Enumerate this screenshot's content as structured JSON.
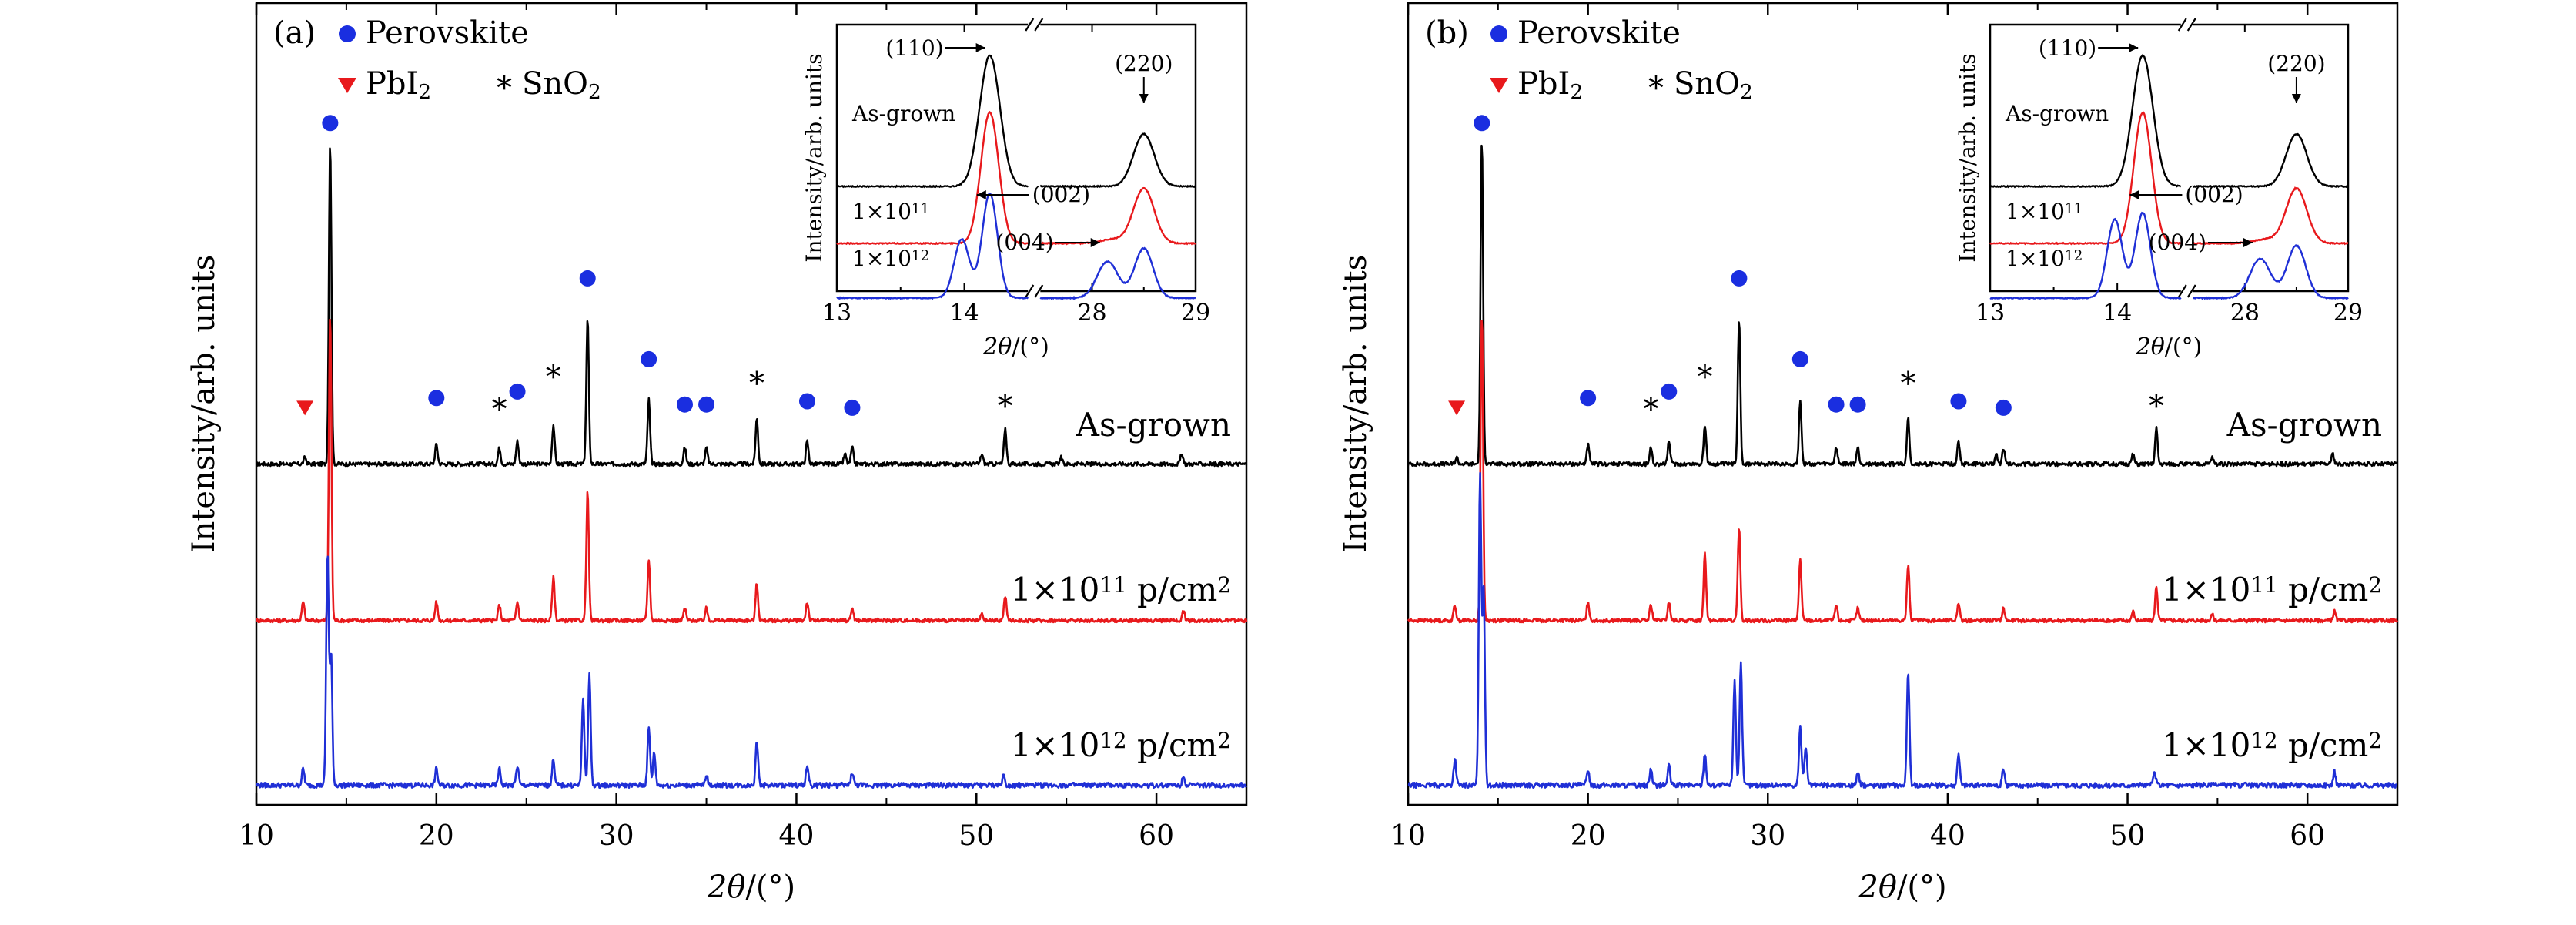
{
  "colors": {
    "as_grown": "#000000",
    "dose_1e11": "#e8191c",
    "dose_1e12": "#1f2fd6",
    "perovskite": "#1a2ee0",
    "pbi2": "#e8191c",
    "frame": "#000000"
  },
  "chart_data": [
    {
      "type": "line",
      "panel_label": "(a)",
      "xlabel_parts": {
        "sym": "2θ",
        "unit": "/(°)"
      },
      "ylabel": "Intensity/arb. units",
      "xlim": [
        10,
        65
      ],
      "xticks": [
        "10",
        "20",
        "30",
        "40",
        "50",
        "60"
      ],
      "legend": {
        "perovskite": "Perovskite",
        "pbi2_parts": [
          "PbI",
          "2"
        ],
        "sno2_star": "*",
        "sno2_parts": [
          "SnO",
          "2"
        ]
      },
      "series": [
        {
          "name": "As-grown",
          "label_parts": [
            "As-grown"
          ],
          "offset": 2,
          "scale": 1.0,
          "noise": 1.0,
          "peaks": [
            [
              12.7,
              2
            ],
            [
              14.1,
              100
            ],
            [
              20.0,
              6
            ],
            [
              23.5,
              5
            ],
            [
              24.5,
              7
            ],
            [
              26.5,
              12
            ],
            [
              28.4,
              45
            ],
            [
              31.8,
              20
            ],
            [
              33.8,
              5
            ],
            [
              35.0,
              5
            ],
            [
              37.8,
              14
            ],
            [
              40.6,
              7
            ],
            [
              42.7,
              3
            ],
            [
              43.1,
              5
            ],
            [
              50.3,
              3
            ],
            [
              51.6,
              11
            ],
            [
              54.7,
              2
            ],
            [
              61.4,
              3
            ]
          ],
          "markers": [
            {
              "kind": "pbi2",
              "x": 12.7,
              "y": 0.18
            },
            {
              "kind": "perovskite",
              "x": 14.1,
              "y": 1.06
            },
            {
              "kind": "perovskite",
              "x": 20.0,
              "y": 0.21
            },
            {
              "kind": "sno2",
              "x": 23.5,
              "y": 0.19
            },
            {
              "kind": "perovskite",
              "x": 24.5,
              "y": 0.23
            },
            {
              "kind": "sno2",
              "x": 26.5,
              "y": 0.29
            },
            {
              "kind": "perovskite",
              "x": 28.4,
              "y": 0.58
            },
            {
              "kind": "perovskite",
              "x": 31.8,
              "y": 0.33
            },
            {
              "kind": "perovskite",
              "x": 33.8,
              "y": 0.19
            },
            {
              "kind": "perovskite",
              "x": 35.0,
              "y": 0.19
            },
            {
              "kind": "sno2",
              "x": 37.8,
              "y": 0.27
            },
            {
              "kind": "perovskite",
              "x": 40.6,
              "y": 0.2
            },
            {
              "kind": "perovskite",
              "x": 43.1,
              "y": 0.18
            },
            {
              "kind": "sno2",
              "x": 51.6,
              "y": 0.2
            }
          ]
        },
        {
          "name": "1×10^11 p/cm^2",
          "label_parts": [
            "1×10",
            "11",
            " p/cm",
            "2"
          ],
          "offset": 1,
          "scale": 0.95,
          "noise": 1.0,
          "peaks": [
            [
              12.6,
              6
            ],
            [
              14.1,
              100
            ],
            [
              20.0,
              6
            ],
            [
              23.5,
              5
            ],
            [
              24.5,
              6
            ],
            [
              26.5,
              14
            ],
            [
              28.4,
              42
            ],
            [
              31.8,
              20
            ],
            [
              33.8,
              4
            ],
            [
              35.0,
              4
            ],
            [
              37.8,
              12
            ],
            [
              40.6,
              6
            ],
            [
              43.1,
              4
            ],
            [
              50.3,
              2
            ],
            [
              51.6,
              8
            ],
            [
              61.5,
              3
            ]
          ],
          "markers": []
        },
        {
          "name": "1×10^12 p/cm^2",
          "label_parts": [
            "1×10",
            "12",
            " p/cm",
            "2"
          ],
          "offset": 0,
          "scale": 1.0,
          "noise": 1.3,
          "peaks": [
            [
              12.6,
              5
            ],
            [
              13.95,
              72
            ],
            [
              14.15,
              40
            ],
            [
              20.0,
              5
            ],
            [
              23.5,
              5
            ],
            [
              24.5,
              6
            ],
            [
              26.5,
              8
            ],
            [
              28.15,
              26
            ],
            [
              28.5,
              34
            ],
            [
              31.8,
              18
            ],
            [
              32.1,
              10
            ],
            [
              35.0,
              3
            ],
            [
              37.8,
              14
            ],
            [
              40.6,
              6
            ],
            [
              43.1,
              4
            ],
            [
              51.5,
              3
            ],
            [
              61.5,
              3
            ]
          ],
          "markers": []
        }
      ],
      "inset": {
        "ylabel": "Intensity/arb. units",
        "xlabel_parts": {
          "sym": "2θ",
          "unit": "/(°)"
        },
        "xticks": [
          "13",
          "14",
          "28",
          "29"
        ],
        "break_ranges": [
          [
            13,
            14.5
          ],
          [
            27.5,
            29
          ]
        ],
        "break_mark": "//",
        "series_labels": [
          {
            "parts": [
              "As-grown"
            ]
          },
          {
            "parts": [
              "1×10",
              "11"
            ]
          },
          {
            "parts": [
              "1×10",
              "12"
            ]
          }
        ],
        "series": [
          {
            "left_peaks": [
              [
                14.2,
                100,
                0.08
              ]
            ],
            "right_peaks": [
              [
                28.5,
                40,
                0.1
              ]
            ]
          },
          {
            "left_peaks": [
              [
                14.2,
                100,
                0.07
              ]
            ],
            "right_peaks": [
              [
                28.2,
                3,
                0.12
              ],
              [
                28.5,
                42,
                0.1
              ]
            ]
          },
          {
            "left_peaks": [
              [
                13.98,
                45,
                0.06
              ],
              [
                14.2,
                80,
                0.06
              ]
            ],
            "right_peaks": [
              [
                28.15,
                28,
                0.1
              ],
              [
                28.5,
                38,
                0.09
              ]
            ]
          }
        ],
        "annotations": [
          {
            "text": "(110)"
          },
          {
            "text": "(220)"
          },
          {
            "text": "(002)"
          },
          {
            "text": "(004)"
          }
        ]
      }
    },
    {
      "type": "line",
      "panel_label": "(b)",
      "xlabel_parts": {
        "sym": "2θ",
        "unit": "/(°)"
      },
      "ylabel": "Intensity/arb. units",
      "xlim": [
        10,
        65
      ],
      "xticks": [
        "10",
        "20",
        "30",
        "40",
        "50",
        "60"
      ],
      "legend": {
        "perovskite": "Perovskite",
        "pbi2_parts": [
          "PbI",
          "2"
        ],
        "sno2_star": "*",
        "sno2_parts": [
          "SnO",
          "2"
        ]
      },
      "series": [
        {
          "name": "As-grown",
          "label_parts": [
            "As-grown"
          ],
          "offset": 2,
          "scale": 1.0,
          "noise": 1.0,
          "peaks": [
            [
              12.7,
              2
            ],
            [
              14.1,
              100
            ],
            [
              20.0,
              6
            ],
            [
              23.5,
              5
            ],
            [
              24.5,
              7
            ],
            [
              26.5,
              12
            ],
            [
              28.4,
              45
            ],
            [
              31.8,
              20
            ],
            [
              33.8,
              5
            ],
            [
              35.0,
              5
            ],
            [
              37.8,
              14
            ],
            [
              40.6,
              7
            ],
            [
              42.7,
              3
            ],
            [
              43.1,
              5
            ],
            [
              50.3,
              3
            ],
            [
              51.6,
              11
            ],
            [
              54.7,
              2
            ],
            [
              61.4,
              3
            ]
          ],
          "markers": [
            {
              "kind": "pbi2",
              "x": 12.7,
              "y": 0.18
            },
            {
              "kind": "perovskite",
              "x": 14.1,
              "y": 1.06
            },
            {
              "kind": "perovskite",
              "x": 20.0,
              "y": 0.21
            },
            {
              "kind": "sno2",
              "x": 23.5,
              "y": 0.19
            },
            {
              "kind": "perovskite",
              "x": 24.5,
              "y": 0.23
            },
            {
              "kind": "sno2",
              "x": 26.5,
              "y": 0.29
            },
            {
              "kind": "perovskite",
              "x": 28.4,
              "y": 0.58
            },
            {
              "kind": "perovskite",
              "x": 31.8,
              "y": 0.33
            },
            {
              "kind": "perovskite",
              "x": 33.8,
              "y": 0.19
            },
            {
              "kind": "perovskite",
              "x": 35.0,
              "y": 0.19
            },
            {
              "kind": "sno2",
              "x": 37.8,
              "y": 0.27
            },
            {
              "kind": "perovskite",
              "x": 40.6,
              "y": 0.2
            },
            {
              "kind": "perovskite",
              "x": 43.1,
              "y": 0.18
            },
            {
              "kind": "sno2",
              "x": 51.6,
              "y": 0.2
            }
          ]
        },
        {
          "name": "1×10^11 p/cm^2",
          "label_parts": [
            "1×10",
            "11",
            " p/cm",
            "2"
          ],
          "offset": 1,
          "scale": 0.95,
          "noise": 1.0,
          "peaks": [
            [
              12.6,
              5
            ],
            [
              14.1,
              100
            ],
            [
              20.0,
              6
            ],
            [
              23.5,
              5
            ],
            [
              24.5,
              6
            ],
            [
              26.5,
              22
            ],
            [
              28.4,
              30
            ],
            [
              31.8,
              20
            ],
            [
              33.8,
              5
            ],
            [
              35.0,
              4
            ],
            [
              37.8,
              18
            ],
            [
              40.6,
              6
            ],
            [
              43.1,
              4
            ],
            [
              50.3,
              3
            ],
            [
              51.6,
              11
            ],
            [
              54.7,
              2
            ],
            [
              61.5,
              3
            ]
          ],
          "markers": []
        },
        {
          "name": "1×10^12 p/cm^2",
          "label_parts": [
            "1×10",
            "12",
            " p/cm",
            "2"
          ],
          "offset": 0,
          "scale": 1.0,
          "noise": 1.3,
          "peaks": [
            [
              12.6,
              8
            ],
            [
              14.0,
              95
            ],
            [
              14.2,
              60
            ],
            [
              20.0,
              5
            ],
            [
              23.5,
              5
            ],
            [
              24.5,
              6
            ],
            [
              26.5,
              10
            ],
            [
              28.15,
              32
            ],
            [
              28.5,
              38
            ],
            [
              31.8,
              18
            ],
            [
              32.1,
              12
            ],
            [
              35.0,
              4
            ],
            [
              37.8,
              35
            ],
            [
              40.6,
              10
            ],
            [
              43.1,
              5
            ],
            [
              51.5,
              4
            ],
            [
              61.5,
              4
            ]
          ],
          "markers": []
        }
      ],
      "inset": {
        "ylabel": "Intensity/arb. units",
        "xlabel_parts": {
          "sym": "2θ",
          "unit": "/(°)"
        },
        "xticks": [
          "13",
          "14",
          "28",
          "29"
        ],
        "break_ranges": [
          [
            13,
            14.5
          ],
          [
            27.5,
            29
          ]
        ],
        "break_mark": "//",
        "series_labels": [
          {
            "parts": [
              "As-grown"
            ]
          },
          {
            "parts": [
              "1×10",
              "11"
            ]
          },
          {
            "parts": [
              "1×10",
              "12"
            ]
          }
        ],
        "series": [
          {
            "left_peaks": [
              [
                14.2,
                100,
                0.08
              ]
            ],
            "right_peaks": [
              [
                28.5,
                40,
                0.1
              ]
            ]
          },
          {
            "left_peaks": [
              [
                14.2,
                100,
                0.07
              ]
            ],
            "right_peaks": [
              [
                28.2,
                3,
                0.12
              ],
              [
                28.5,
                42,
                0.1
              ]
            ]
          },
          {
            "left_peaks": [
              [
                13.98,
                60,
                0.06
              ],
              [
                14.2,
                65,
                0.06
              ]
            ],
            "right_peaks": [
              [
                28.15,
                30,
                0.1
              ],
              [
                28.5,
                40,
                0.09
              ]
            ]
          }
        ],
        "annotations": [
          {
            "text": "(110)"
          },
          {
            "text": "(220)"
          },
          {
            "text": "(002)"
          },
          {
            "text": "(004)"
          }
        ]
      }
    }
  ]
}
